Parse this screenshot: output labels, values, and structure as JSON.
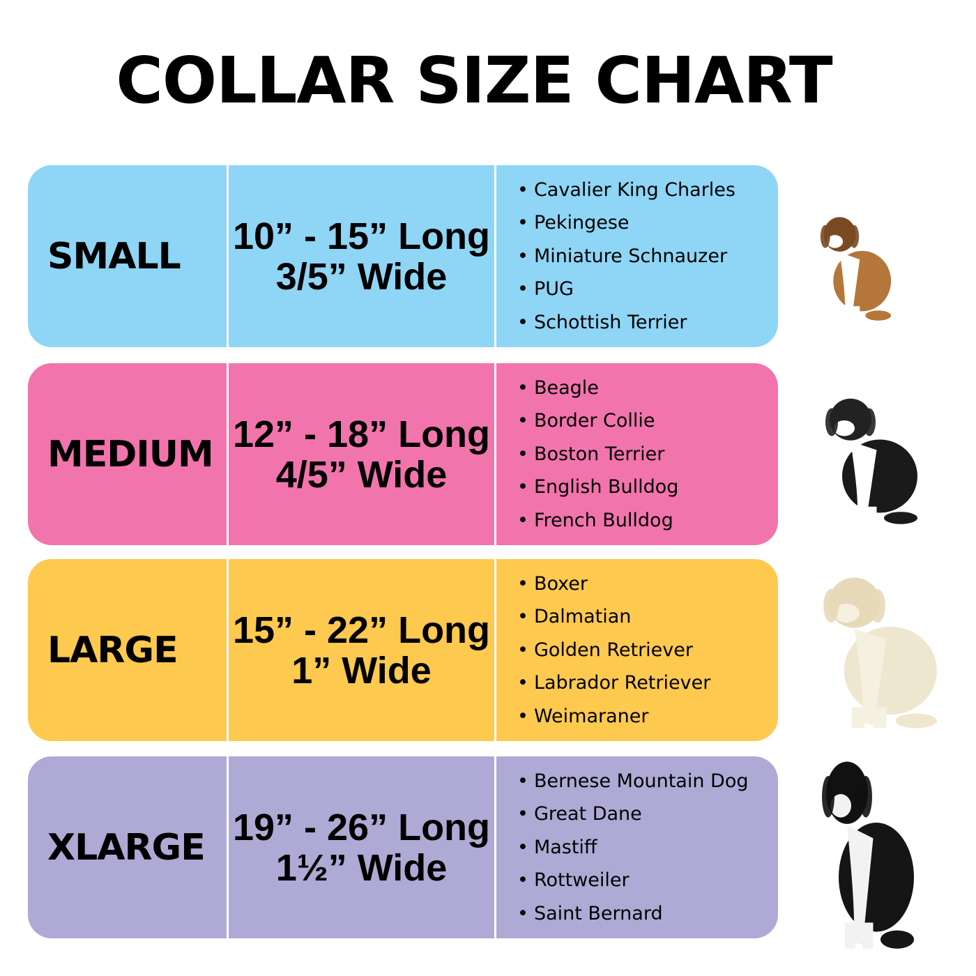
{
  "title": "COLLAR SIZE CHART",
  "rows": [
    {
      "size": "SMALL",
      "length": "10” - 15” Long",
      "width": "3/5” Wide",
      "color": "#8FD5F5",
      "dog_icon": "beagle-photo",
      "breeds": [
        "Cavalier King Charles",
        "Pekingese",
        "Miniature Schnauzer",
        "PUG",
        "Schottish Terrier"
      ]
    },
    {
      "size": "MEDIUM",
      "length": "12” - 18” Long",
      "width": "4/5” Wide",
      "color": "#F274AC",
      "dog_icon": "australian-shepherd-photo",
      "breeds": [
        "Beagle",
        "Border Collie",
        "Boston Terrier",
        "English Bulldog",
        "French Bulldog"
      ]
    },
    {
      "size": "LARGE",
      "length": "15” - 22” Long",
      "width": "1” Wide",
      "color": "#FDC94E",
      "dog_icon": "labrador-photo",
      "breeds": [
        "Boxer",
        "Dalmatian",
        "Golden Retriever",
        "Labrador Retriever",
        "Weimaraner"
      ]
    },
    {
      "size": "XLARGE",
      "length": "19” - 26” Long",
      "width": "1½” Wide",
      "color": "#AEAAD5",
      "dog_icon": "great-dane-photo",
      "breeds": [
        "Bernese Mountain Dog",
        "Great Dane",
        "Mastiff",
        "Rottweiler",
        "Saint Bernard"
      ]
    }
  ]
}
